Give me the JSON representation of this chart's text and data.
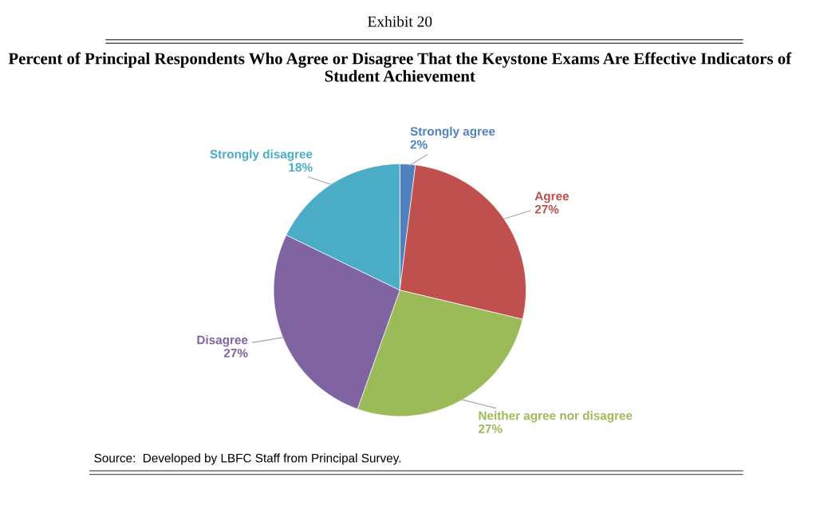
{
  "chart_data": {
    "type": "pie",
    "title": "Exhibit 20",
    "subtitle": "Percent of Principal Respondents Who Agree or Disagree That the Keystone Exams Are Effective Indicators of Student Achievement",
    "categories": [
      "Strongly agree",
      "Agree",
      "Neither agree nor disagree",
      "Disagree",
      "Strongly disagree"
    ],
    "values": [
      2,
      27,
      27,
      27,
      18
    ],
    "colors": [
      "#4f81bd",
      "#c0504d",
      "#9bbb59",
      "#8064a2",
      "#4bacc6"
    ],
    "value_labels": [
      "2%",
      "27%",
      "27%",
      "27%",
      "18%"
    ],
    "legend": false,
    "annotations": [
      "Source:  Developed by LBFC Staff from Principal Survey."
    ]
  }
}
